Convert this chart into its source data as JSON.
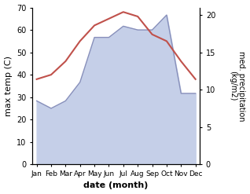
{
  "months": [
    "Jan",
    "Feb",
    "Mar",
    "Apr",
    "May",
    "Jun",
    "Jul",
    "Aug",
    "Sep",
    "Oct",
    "Nov",
    "Dec"
  ],
  "temp": [
    38,
    40,
    46,
    55,
    62,
    65,
    68,
    66,
    58,
    55,
    46,
    38
  ],
  "precip": [
    8.5,
    7.5,
    8.5,
    11,
    17,
    17,
    18.5,
    18,
    18,
    20,
    9.5,
    9.5
  ],
  "temp_color": "#c0514b",
  "precip_fill_color": "#c5cfe8",
  "precip_line_color": "#8890bb",
  "ylim_temp": [
    0,
    70
  ],
  "ylim_precip": [
    0,
    21
  ],
  "yticks_temp": [
    0,
    10,
    20,
    30,
    40,
    50,
    60,
    70
  ],
  "yticks_precip": [
    0,
    5,
    10,
    15,
    20
  ],
  "xlabel": "date (month)",
  "ylabel_left": "max temp (C)",
  "ylabel_right": "med. precipitation\n(kg/m2)"
}
